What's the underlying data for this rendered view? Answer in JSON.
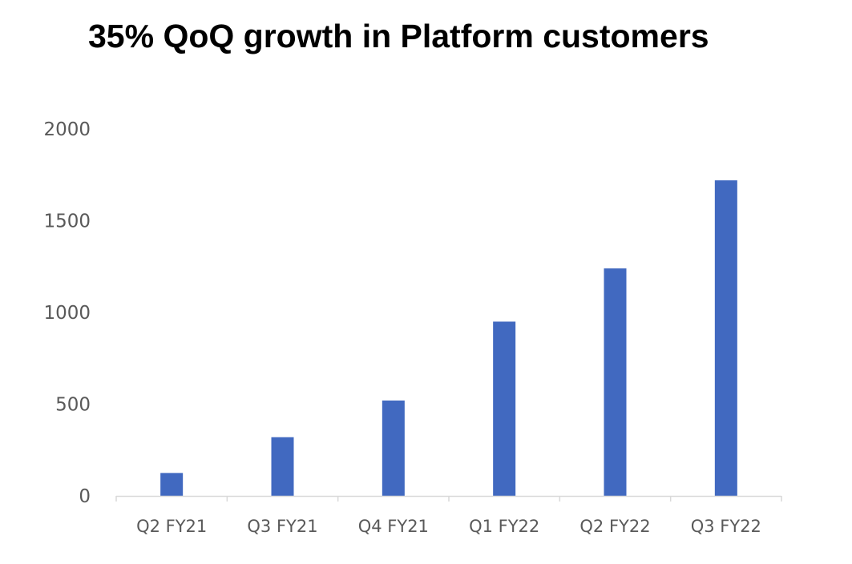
{
  "chart_data": {
    "type": "bar",
    "title": "35% QoQ growth in Platform customers",
    "xlabel": "",
    "ylabel": "",
    "categories": [
      "Q2 FY21",
      "Q3 FY21",
      "Q4 FY21",
      "Q1 FY22",
      "Q2 FY22",
      "Q3 FY22"
    ],
    "values": [
      125,
      320,
      520,
      950,
      1240,
      1720
    ],
    "yticks": [
      "0",
      "500",
      "1000",
      "1500",
      "2000"
    ],
    "ylim": [
      0,
      2000
    ],
    "grid": false,
    "legend": "none",
    "bar_color": "#4169C0",
    "axis_color": "#D9D9D9"
  }
}
